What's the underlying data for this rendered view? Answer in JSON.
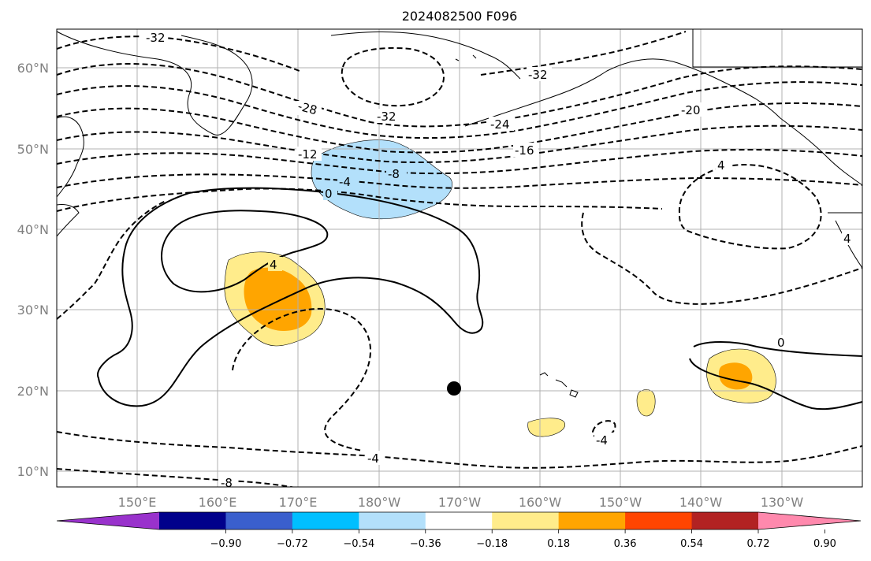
{
  "title": "2024082500 F096",
  "lat_labels": [
    "60°N",
    "50°N",
    "40°N",
    "30°N",
    "20°N",
    "10°N"
  ],
  "lon_labels": [
    "150°E",
    "160°E",
    "170°E",
    "180°W",
    "170°W",
    "160°W",
    "150°W",
    "140°W",
    "130°W"
  ],
  "contour_labels": [
    "-32",
    "-32",
    "-32",
    "-28",
    "-24",
    "-20",
    "-16",
    "-12",
    "-8",
    "-4",
    "0",
    "4",
    "4",
    "0",
    "-4",
    "-4",
    "-8",
    "4"
  ],
  "colorbar": {
    "tick_labels": [
      "−0.90",
      "−0.72",
      "−0.54",
      "−0.36",
      "−0.18",
      "0.18",
      "0.36",
      "0.54",
      "0.72",
      "0.90"
    ],
    "colors": [
      "#9932cc",
      "#00008b",
      "#3a5fcd",
      "#00bfff",
      "#b3e0fb",
      "#ffffff",
      "#ffec8b",
      "#ffa500",
      "#ff4500",
      "#b22222",
      "#ff89ad"
    ]
  },
  "shading_colors": {
    "light_blue": "#b3e0fb",
    "light_yellow": "#ffec8b",
    "orange": "#ffa500"
  },
  "marker": "storm-center-dot"
}
